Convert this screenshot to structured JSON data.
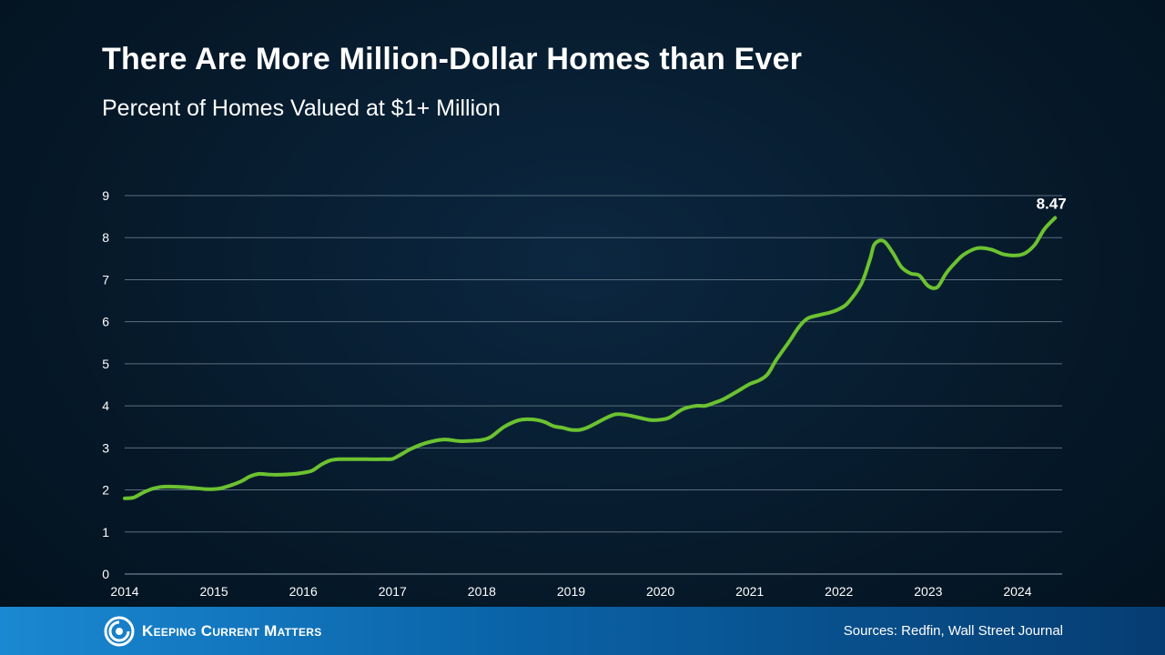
{
  "header": {
    "title": "There Are More Million-Dollar Homes than Ever",
    "subtitle": "Percent of Homes Valued at $1+ Million"
  },
  "footer": {
    "brand": "Keeping Current Matters",
    "sources": "Sources: Redfin, Wall Street Journal"
  },
  "colors": {
    "line": "#6cc230",
    "grid": "#5b6f80",
    "text": "#ffffff"
  },
  "chart_data": {
    "type": "line",
    "title": "There Are More Million-Dollar Homes than Ever",
    "subtitle": "Percent of Homes Valued at $1+ Million",
    "xlabel": "",
    "ylabel": "",
    "xlim": [
      2014,
      2024.5
    ],
    "ylim": [
      0,
      9
    ],
    "x_ticks": [
      "2014",
      "2015",
      "2016",
      "2017",
      "2018",
      "2019",
      "2020",
      "2021",
      "2022",
      "2023",
      "2024"
    ],
    "y_ticks": [
      "0",
      "1",
      "2",
      "3",
      "4",
      "5",
      "6",
      "7",
      "8",
      "9"
    ],
    "grid": true,
    "legend": "none",
    "end_label": "8.47",
    "series": [
      {
        "x": [
          2014.0,
          2014.1,
          2014.2,
          2014.3,
          2014.4,
          2014.5,
          2014.7,
          2014.9,
          2015.0,
          2015.1,
          2015.3,
          2015.4,
          2015.5,
          2015.6,
          2015.7,
          2015.9,
          2016.0,
          2016.1,
          2016.2,
          2016.3,
          2016.4,
          2016.5,
          2016.7,
          2016.9,
          2017.0,
          2017.1,
          2017.2,
          2017.35,
          2017.5,
          2017.6,
          2017.75,
          2017.9,
          2018.0,
          2018.1,
          2018.25,
          2018.4,
          2018.5,
          2018.6,
          2018.7,
          2018.8,
          2018.9,
          2019.0,
          2019.1,
          2019.2,
          2019.4,
          2019.5,
          2019.6,
          2019.7,
          2019.8,
          2019.9,
          2020.0,
          2020.1,
          2020.25,
          2020.4,
          2020.5,
          2020.6,
          2020.7,
          2020.85,
          2021.0,
          2021.1,
          2021.2,
          2021.3,
          2021.45,
          2021.55,
          2021.65,
          2021.8,
          2021.9,
          2022.0,
          2022.1,
          2022.25,
          2022.35,
          2022.4,
          2022.5,
          2022.6,
          2022.7,
          2022.8,
          2022.9,
          2023.0,
          2023.1,
          2023.2,
          2023.3,
          2023.4,
          2023.55,
          2023.7,
          2023.85,
          2024.0,
          2024.1,
          2024.2,
          2024.3,
          2024.42
        ],
        "values": [
          1.8,
          1.82,
          1.93,
          2.02,
          2.07,
          2.08,
          2.06,
          2.02,
          2.02,
          2.05,
          2.2,
          2.32,
          2.38,
          2.37,
          2.36,
          2.38,
          2.41,
          2.46,
          2.6,
          2.7,
          2.73,
          2.73,
          2.73,
          2.73,
          2.74,
          2.85,
          2.97,
          3.1,
          3.18,
          3.2,
          3.16,
          3.17,
          3.19,
          3.26,
          3.5,
          3.65,
          3.68,
          3.67,
          3.62,
          3.52,
          3.48,
          3.43,
          3.43,
          3.5,
          3.72,
          3.8,
          3.79,
          3.75,
          3.7,
          3.66,
          3.67,
          3.72,
          3.92,
          4.0,
          4.0,
          4.07,
          4.15,
          4.33,
          4.52,
          4.6,
          4.75,
          5.1,
          5.55,
          5.87,
          6.08,
          6.17,
          6.22,
          6.3,
          6.45,
          6.9,
          7.5,
          7.85,
          7.92,
          7.65,
          7.3,
          7.15,
          7.1,
          6.85,
          6.82,
          7.15,
          7.4,
          7.6,
          7.75,
          7.72,
          7.6,
          7.58,
          7.65,
          7.85,
          8.2,
          8.47
        ]
      }
    ]
  }
}
